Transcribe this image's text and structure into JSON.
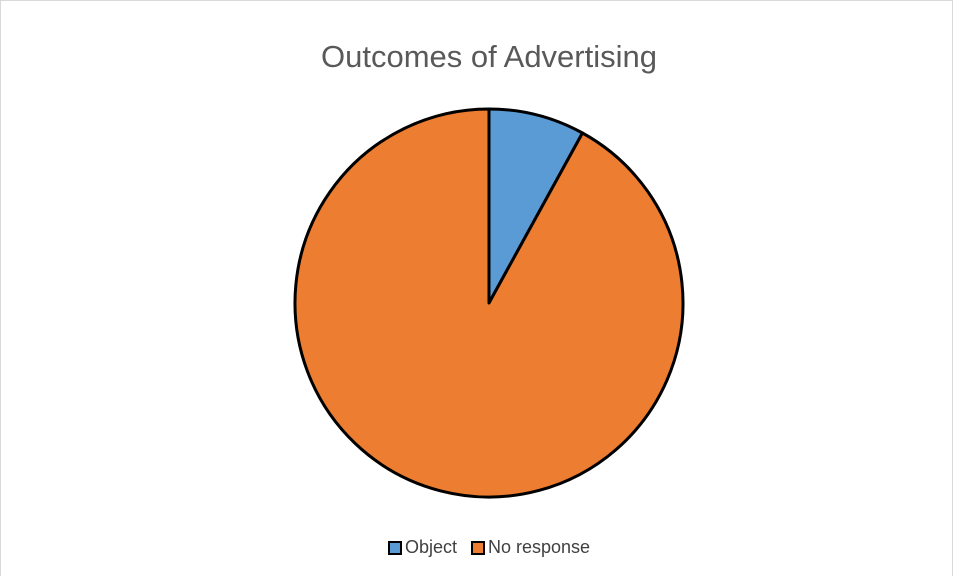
{
  "chart_data": {
    "type": "pie",
    "title": "Outcomes of Advertising",
    "categories": [
      "Object",
      "No response"
    ],
    "values": [
      8,
      92
    ],
    "colors": [
      "#5b9bd5",
      "#ed7d31"
    ],
    "slice_outline_color": "#000000",
    "start_angle": "12 o'clock",
    "direction": "clockwise",
    "legend_position": "bottom"
  }
}
